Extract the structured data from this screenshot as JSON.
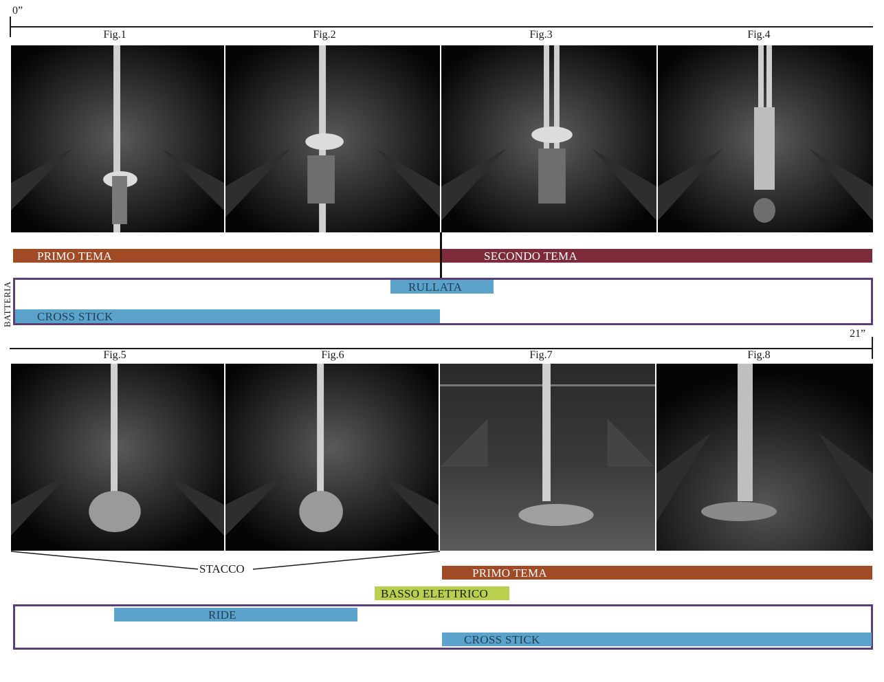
{
  "timeline": {
    "start_label": "0”",
    "end_label": "21”"
  },
  "figures": {
    "row1": [
      "Fig.1",
      "Fig.2",
      "Fig.3",
      "Fig.4"
    ],
    "row2": [
      "Fig.5",
      "Fig.6",
      "Fig.7",
      "Fig.8"
    ]
  },
  "section1": {
    "primo_tema": "PRIMO TEMA",
    "secondo_tema": "SECONDO TEMA",
    "batteria_label": "BATTERIA",
    "rullata": "RULLATA",
    "cross_stick": "CROSS STICK"
  },
  "section2": {
    "stacco": "STACCO",
    "primo_tema": "PRIMO TEMA",
    "basso_elettrico": "BASSO ELETTRICO",
    "ride": "RIDE",
    "cross_stick": "CROSS STICK"
  },
  "colors": {
    "primo_tema": "#a14a26",
    "secondo_tema": "#7d2a3b",
    "drums": "#5ba3cb",
    "bass": "#b9d04e",
    "batteria_frame": "#5a3e78"
  }
}
